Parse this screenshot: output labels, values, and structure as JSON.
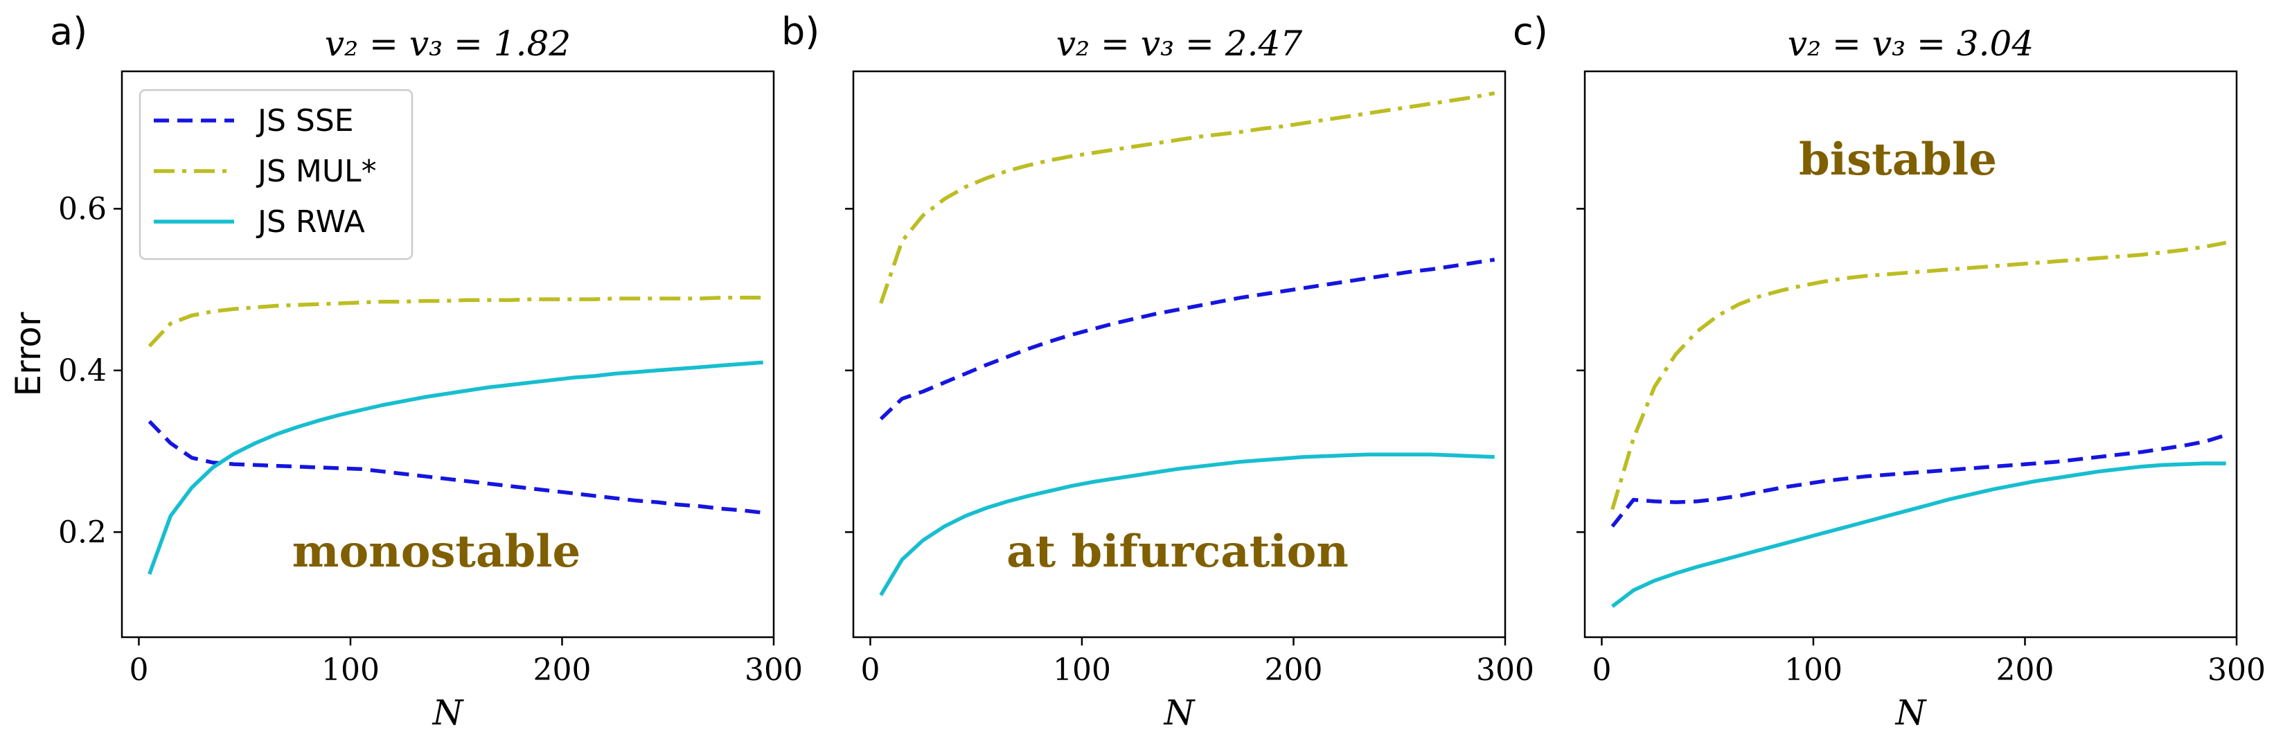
{
  "chart_data": [
    {
      "type": "line",
      "panel_label": "a)",
      "title": "v₂ = v₃ = 1.82",
      "xlabel": "N",
      "ylabel": "Error",
      "xlim": [
        -8,
        300
      ],
      "ylim": [
        0.07,
        0.77
      ],
      "xticks": [
        "0",
        "100",
        "200",
        "300"
      ],
      "yticks": [
        "0.2",
        "0.4",
        "0.6"
      ],
      "annotation": "monostable",
      "x": [
        5,
        15,
        25,
        35,
        45,
        55,
        65,
        75,
        85,
        95,
        105,
        115,
        125,
        135,
        145,
        155,
        165,
        175,
        185,
        195,
        205,
        215,
        225,
        235,
        245,
        255,
        265,
        275,
        285,
        295
      ],
      "series": [
        {
          "name": "JS SSE",
          "color": "#1515e0",
          "style": "dashed",
          "values": [
            0.337,
            0.31,
            0.292,
            0.286,
            0.284,
            0.283,
            0.282,
            0.281,
            0.28,
            0.279,
            0.278,
            0.275,
            0.272,
            0.269,
            0.266,
            0.263,
            0.26,
            0.257,
            0.254,
            0.251,
            0.248,
            0.245,
            0.242,
            0.239,
            0.237,
            0.234,
            0.232,
            0.229,
            0.227,
            0.224
          ]
        },
        {
          "name": "JS MUL*",
          "color": "#bcbd22",
          "style": "dashdot",
          "values": [
            0.43,
            0.458,
            0.468,
            0.473,
            0.476,
            0.478,
            0.48,
            0.481,
            0.482,
            0.483,
            0.484,
            0.485,
            0.485,
            0.486,
            0.486,
            0.487,
            0.487,
            0.487,
            0.488,
            0.488,
            0.488,
            0.488,
            0.489,
            0.489,
            0.489,
            0.489,
            0.489,
            0.49,
            0.49,
            0.49
          ]
        },
        {
          "name": "JS RWA",
          "color": "#17becf",
          "style": "solid",
          "values": [
            0.148,
            0.22,
            0.255,
            0.28,
            0.297,
            0.31,
            0.321,
            0.33,
            0.338,
            0.345,
            0.351,
            0.357,
            0.362,
            0.367,
            0.371,
            0.375,
            0.379,
            0.382,
            0.385,
            0.388,
            0.391,
            0.393,
            0.396,
            0.398,
            0.4,
            0.402,
            0.404,
            0.406,
            0.408,
            0.41
          ]
        }
      ]
    },
    {
      "type": "line",
      "panel_label": "b)",
      "title": "v₂ = v₃ = 2.47",
      "xlabel": "N",
      "ylabel": "",
      "xlim": [
        -8,
        300
      ],
      "ylim": [
        0.07,
        0.77
      ],
      "xticks": [
        "0",
        "100",
        "200",
        "300"
      ],
      "yticks": [],
      "annotation": "at bifurcation",
      "x": [
        5,
        15,
        25,
        35,
        45,
        55,
        65,
        75,
        85,
        95,
        105,
        115,
        125,
        135,
        145,
        155,
        165,
        175,
        185,
        195,
        205,
        215,
        225,
        235,
        245,
        255,
        265,
        275,
        285,
        295
      ],
      "series": [
        {
          "name": "JS SSE",
          "color": "#1515e0",
          "style": "dashed",
          "values": [
            0.34,
            0.365,
            0.374,
            0.385,
            0.396,
            0.407,
            0.417,
            0.427,
            0.436,
            0.444,
            0.451,
            0.458,
            0.464,
            0.47,
            0.475,
            0.48,
            0.485,
            0.49,
            0.494,
            0.498,
            0.502,
            0.506,
            0.51,
            0.514,
            0.518,
            0.522,
            0.525,
            0.529,
            0.533,
            0.537
          ]
        },
        {
          "name": "JS MUL*",
          "color": "#bcbd22",
          "style": "dashdot",
          "values": [
            0.483,
            0.56,
            0.592,
            0.612,
            0.627,
            0.638,
            0.647,
            0.654,
            0.66,
            0.665,
            0.669,
            0.673,
            0.677,
            0.681,
            0.685,
            0.689,
            0.692,
            0.695,
            0.699,
            0.702,
            0.706,
            0.71,
            0.714,
            0.718,
            0.722,
            0.726,
            0.73,
            0.734,
            0.738,
            0.743
          ]
        },
        {
          "name": "JS RWA",
          "color": "#17becf",
          "style": "solid",
          "values": [
            0.122,
            0.166,
            0.19,
            0.207,
            0.22,
            0.23,
            0.238,
            0.245,
            0.251,
            0.257,
            0.262,
            0.266,
            0.27,
            0.274,
            0.278,
            0.281,
            0.284,
            0.287,
            0.289,
            0.291,
            0.293,
            0.294,
            0.295,
            0.296,
            0.296,
            0.296,
            0.296,
            0.295,
            0.294,
            0.293
          ]
        }
      ]
    },
    {
      "type": "line",
      "panel_label": "c)",
      "title": "v₂ = v₃ = 3.04",
      "xlabel": "N",
      "ylabel": "",
      "xlim": [
        -8,
        300
      ],
      "ylim": [
        0.07,
        0.77
      ],
      "xticks": [
        "0",
        "100",
        "200",
        "300"
      ],
      "yticks": [],
      "annotation": "bistable",
      "x": [
        5,
        15,
        25,
        35,
        45,
        55,
        65,
        75,
        85,
        95,
        105,
        115,
        125,
        135,
        145,
        155,
        165,
        175,
        185,
        195,
        205,
        215,
        225,
        235,
        245,
        255,
        265,
        275,
        285,
        295
      ],
      "series": [
        {
          "name": "JS SSE",
          "color": "#1515e0",
          "style": "dashed",
          "values": [
            0.207,
            0.24,
            0.238,
            0.237,
            0.238,
            0.241,
            0.245,
            0.25,
            0.255,
            0.259,
            0.263,
            0.266,
            0.269,
            0.271,
            0.273,
            0.275,
            0.277,
            0.279,
            0.281,
            0.283,
            0.285,
            0.287,
            0.29,
            0.293,
            0.296,
            0.299,
            0.303,
            0.307,
            0.312,
            0.32
          ]
        },
        {
          "name": "JS MUL*",
          "color": "#bcbd22",
          "style": "dashdot",
          "values": [
            0.228,
            0.316,
            0.38,
            0.42,
            0.448,
            0.468,
            0.482,
            0.492,
            0.499,
            0.505,
            0.51,
            0.514,
            0.517,
            0.519,
            0.521,
            0.523,
            0.525,
            0.527,
            0.529,
            0.531,
            0.533,
            0.535,
            0.537,
            0.539,
            0.541,
            0.543,
            0.546,
            0.549,
            0.553,
            0.558
          ]
        },
        {
          "name": "JS RWA",
          "color": "#17becf",
          "style": "solid",
          "values": [
            0.108,
            0.128,
            0.14,
            0.149,
            0.157,
            0.164,
            0.171,
            0.178,
            0.185,
            0.192,
            0.199,
            0.206,
            0.213,
            0.22,
            0.227,
            0.234,
            0.241,
            0.247,
            0.253,
            0.258,
            0.263,
            0.267,
            0.271,
            0.275,
            0.278,
            0.281,
            0.283,
            0.284,
            0.285,
            0.285
          ]
        }
      ]
    }
  ],
  "legend": {
    "placement": "upper-left of panel a",
    "entries": [
      {
        "label": "JS SSE",
        "color": "#1515e0",
        "style": "dashed"
      },
      {
        "label": "JS MUL*",
        "color": "#bcbd22",
        "style": "dashdot"
      },
      {
        "label": "JS RWA",
        "color": "#17becf",
        "style": "solid"
      }
    ]
  }
}
